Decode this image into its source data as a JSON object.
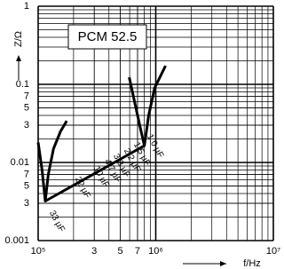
{
  "chart_data": {
    "type": "line",
    "title": "PCM 52.5",
    "x_label": "f/Hz",
    "y_label": "Z/Ω",
    "log_x": true,
    "log_y": true,
    "grid": true,
    "color": "#000000",
    "xlim": [
      100000,
      10000000
    ],
    "ylim": [
      0.001,
      1
    ],
    "xticks": [
      {
        "value": 100000,
        "label": "10⁵"
      },
      {
        "value": 300000,
        "label": "3"
      },
      {
        "value": 500000,
        "label": "5"
      },
      {
        "value": 700000,
        "label": "7"
      },
      {
        "value": 1000000,
        "label": "10⁶"
      },
      {
        "value": 10000000,
        "label": "10⁷"
      }
    ],
    "yticks": [
      1,
      0.1,
      {
        "value": 0.07,
        "label": "7"
      },
      {
        "value": 0.05,
        "label": "5"
      },
      {
        "value": 0.03,
        "label": "3"
      },
      0.01,
      {
        "value": 0.007,
        "label": "7"
      },
      {
        "value": 0.005,
        "label": "5"
      },
      {
        "value": 0.003,
        "label": "3"
      },
      0.001
    ],
    "xgrid": [
      200000,
      300000,
      400000,
      500000,
      600000,
      700000,
      800000,
      900000,
      2000000,
      3000000,
      4000000,
      5000000,
      6000000,
      7000000,
      8000000,
      9000000
    ],
    "ygrid": [
      0.002,
      0.003,
      0.004,
      0.005,
      0.006,
      0.007,
      0.008,
      0.009,
      0.02,
      0.03,
      0.04,
      0.05,
      0.06,
      0.07,
      0.08,
      0.09,
      0.2,
      0.3,
      0.4,
      0.5,
      0.6,
      0.7,
      0.8,
      0.9
    ],
    "series": [
      {
        "name": "33 µF",
        "x": [
          100000,
          108000,
          115000,
          122000,
          135000,
          155000,
          175000
        ],
        "values": [
          0.018,
          0.008,
          0.0032,
          0.007,
          0.015,
          0.025,
          0.034
        ]
      },
      {
        "name": "1.0 µF",
        "x": [
          595000,
          660000,
          730000,
          800000,
          870000,
          980000,
          1210000
        ],
        "values": [
          0.123,
          0.06,
          0.03,
          0.0164,
          0.04,
          0.09,
          0.173
        ]
      },
      {
        "x": [
          115000,
          800000
        ],
        "values": [
          0.0032,
          0.0164
        ]
      }
    ],
    "annotations": [
      "22 µF",
      "10 µF",
      "4.7 µF",
      "3.3 µF",
      "2.2 µF",
      "1.5 µF"
    ]
  }
}
